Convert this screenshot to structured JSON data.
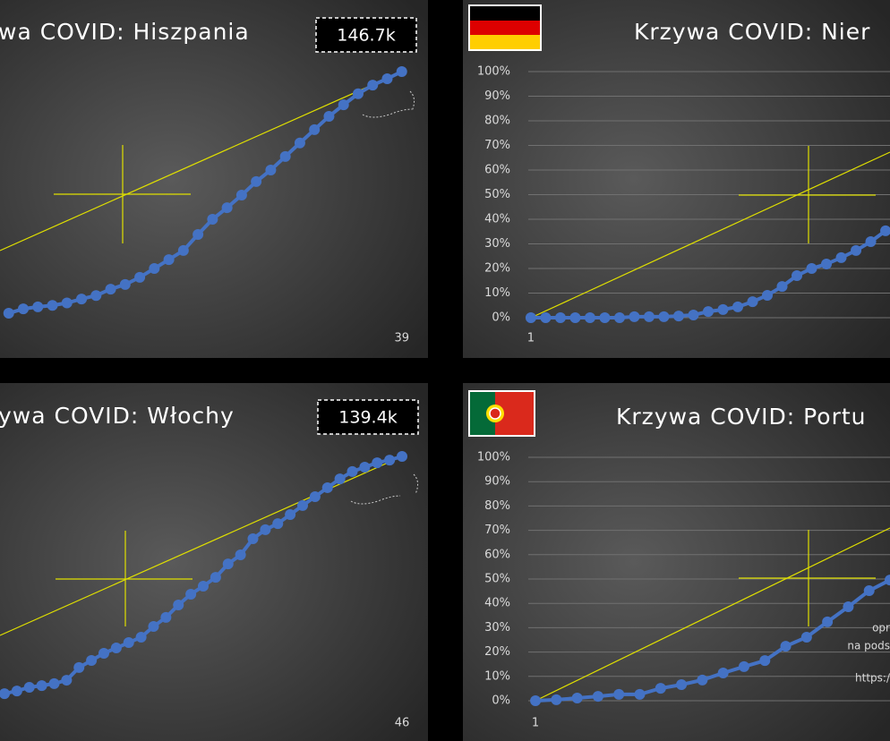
{
  "chart_data": [
    {
      "type": "line",
      "title": "wa COVID: Hiszpania",
      "annotation": "146.7k",
      "x": [
        12,
        13,
        14,
        15,
        16,
        17,
        18,
        19,
        20,
        21,
        22,
        23,
        24,
        25,
        26,
        27,
        28,
        29,
        30,
        31,
        32,
        33,
        34,
        35,
        36,
        37,
        38,
        39
      ],
      "series": [
        {
          "color": "#4472c4",
          "values": [
            1.8,
            3.6,
            4.4,
            5,
            6,
            7.6,
            9,
            11.6,
            13.5,
            16.4,
            20,
            23.6,
            27.3,
            33.8,
            40,
            44.7,
            49.8,
            55.3,
            60,
            65.5,
            71,
            76.4,
            81.8,
            86.5,
            91,
            94.5,
            97.1,
            100
          ]
        }
      ],
      "xlim": [
        11.4,
        40.8
      ],
      "ylim": [
        0,
        100
      ],
      "xticks": [
        39
      ]
    },
    {
      "type": "line",
      "title": "Krzywa COVID: Nier",
      "x": [
        1,
        2,
        3,
        4,
        5,
        6,
        7,
        8,
        9,
        10,
        11,
        12,
        13,
        14,
        15,
        16,
        17,
        18,
        19,
        20,
        21,
        22,
        23,
        24,
        25
      ],
      "series": [
        {
          "color": "#4472c4",
          "values": [
            0,
            0,
            0,
            0,
            0,
            0,
            0,
            0.4,
            0.4,
            0.4,
            0.7,
            1.1,
            2.5,
            3.3,
            4.4,
            6.5,
            9.1,
            12.7,
            17.1,
            20,
            21.8,
            24.4,
            27.3,
            30.9,
            35.3
          ]
        }
      ],
      "xlim": [
        -3.6,
        25.3
      ],
      "ylim": [
        0,
        100
      ],
      "xticks": [
        1
      ],
      "yticks": [
        {
          "value": 0,
          "label": "0%"
        },
        {
          "value": 10,
          "label": "10%"
        },
        {
          "value": 20,
          "label": "20%"
        },
        {
          "value": 30,
          "label": "30%"
        },
        {
          "value": 40,
          "label": "40%"
        },
        {
          "value": 50,
          "label": "50%"
        },
        {
          "value": 60,
          "label": "60%"
        },
        {
          "value": 70,
          "label": "70%"
        },
        {
          "value": 80,
          "label": "80%"
        },
        {
          "value": 90,
          "label": "90%"
        },
        {
          "value": 100,
          "label": "100%"
        }
      ],
      "grid": true
    },
    {
      "type": "line",
      "title": "ywa COVID: Włochy",
      "annotation": "139.4k",
      "x": [
        14,
        15,
        16,
        17,
        18,
        19,
        20,
        21,
        22,
        23,
        24,
        25,
        26,
        27,
        28,
        29,
        30,
        31,
        32,
        33,
        34,
        35,
        36,
        37,
        38,
        39,
        40,
        41,
        42,
        43,
        44,
        45,
        46
      ],
      "series": [
        {
          "color": "#4472c4",
          "values": [
            2.9,
            4,
            5.5,
            6.2,
            7,
            8.4,
            13.6,
            16.5,
            19.4,
            21.6,
            23.8,
            26,
            30.4,
            34.1,
            39.2,
            43.6,
            46.9,
            50.5,
            56,
            59.7,
            66.3,
            70,
            72.5,
            76.2,
            79.9,
            83.5,
            87.2,
            90.8,
            93.8,
            95.6,
            97.4,
            98.5,
            100
          ]
        }
      ],
      "xlim": [
        13.64,
        48.09
      ],
      "ylim": [
        0,
        100
      ],
      "xticks": [
        46
      ]
    },
    {
      "type": "line",
      "title": "Krzywa COVID: Portu",
      "annotations": [
        "opr",
        "na pods",
        "https:/"
      ],
      "x": [
        1,
        2,
        3,
        4,
        5,
        6,
        7,
        8,
        9,
        10,
        11,
        12,
        13,
        14,
        15,
        16,
        17,
        18
      ],
      "series": [
        {
          "color": "#4472c4",
          "values": [
            0,
            0.4,
            1.1,
            1.8,
            2.6,
            2.6,
            5.1,
            6.6,
            8.5,
            11.4,
            14,
            16.5,
            22.4,
            26.1,
            32.4,
            38.6,
            45.2,
            49.6
          ]
        }
      ],
      "xlim": [
        -2.48,
        18
      ],
      "ylim": [
        0,
        100
      ],
      "xticks": [
        1
      ],
      "yticks": [
        {
          "value": 0,
          "label": "0%"
        },
        {
          "value": 10,
          "label": "10%"
        },
        {
          "value": 20,
          "label": "20%"
        },
        {
          "value": 30,
          "label": "30%"
        },
        {
          "value": 40,
          "label": "40%"
        },
        {
          "value": 50,
          "label": "50%"
        },
        {
          "value": 60,
          "label": "60%"
        },
        {
          "value": 70,
          "label": "70%"
        },
        {
          "value": 80,
          "label": "80%"
        },
        {
          "value": 90,
          "label": "90%"
        },
        {
          "value": 100,
          "label": "100%"
        }
      ],
      "grid": true
    }
  ]
}
